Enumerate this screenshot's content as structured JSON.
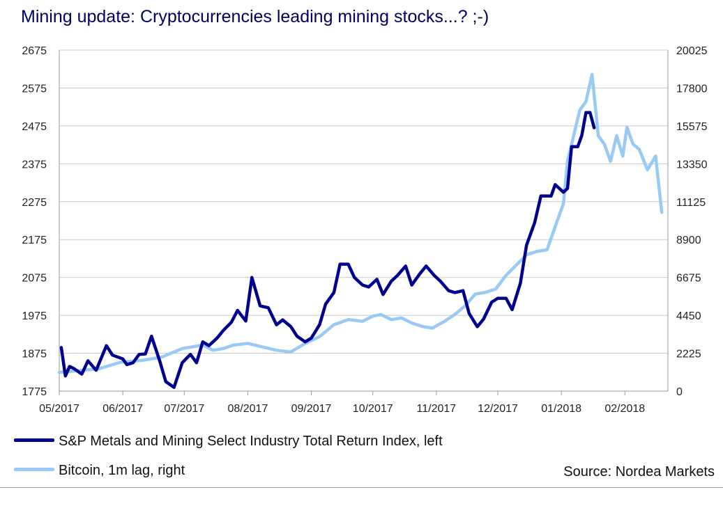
{
  "chart_data": {
    "type": "line",
    "title": "Mining update: Cryptocurrencies leading mining stocks...? ;-)",
    "source": "Source: Nordea Markets",
    "grid": "horizontal",
    "legend_placement": "bottom-left",
    "colors": {
      "left_series": "#00008f",
      "right_series": "#99c9f5",
      "title": "#00005e"
    },
    "x_axis": {
      "range": [
        "2017-05-01",
        "2018-02-22"
      ],
      "tick_labels": [
        "05/2017",
        "06/2017",
        "07/2017",
        "08/2017",
        "09/2017",
        "10/2017",
        "11/2017",
        "12/2017",
        "01/2018",
        "02/2018"
      ],
      "tick_dates": [
        "2017-05-01",
        "2017-06-01",
        "2017-07-01",
        "2017-08-01",
        "2017-09-01",
        "2017-10-01",
        "2017-11-01",
        "2017-12-01",
        "2018-01-01",
        "2018-02-01"
      ]
    },
    "y_left": {
      "range": [
        1775,
        2675
      ],
      "ticks": [
        1775,
        1875,
        1975,
        2075,
        2175,
        2275,
        2375,
        2475,
        2575,
        2675
      ],
      "tick_labels": [
        "1775",
        "1875",
        "1975",
        "2075",
        "2175",
        "2275",
        "2375",
        "2475",
        "2575",
        "2675"
      ]
    },
    "y_right": {
      "range": [
        0,
        20025
      ],
      "ticks": [
        0,
        2225,
        4450,
        6675,
        8900,
        11125,
        13350,
        15575,
        17800,
        20025
      ],
      "tick_labels": [
        "0",
        "2225",
        "4450",
        "6675",
        "8900",
        "11125",
        "13350",
        "15575",
        "17800",
        "20025"
      ]
    },
    "series": [
      {
        "name": "S&P Metals and Mining Select Industry Total Return Index, left",
        "axis": "left",
        "x": [
          "2017-05-02",
          "2017-05-04",
          "2017-05-06",
          "2017-05-08",
          "2017-05-12",
          "2017-05-15",
          "2017-05-19",
          "2017-05-24",
          "2017-05-27",
          "2017-06-01",
          "2017-06-03",
          "2017-06-06",
          "2017-06-09",
          "2017-06-12",
          "2017-06-15",
          "2017-06-19",
          "2017-06-22",
          "2017-06-26",
          "2017-06-30",
          "2017-07-04",
          "2017-07-07",
          "2017-07-10",
          "2017-07-13",
          "2017-07-17",
          "2017-07-20",
          "2017-07-24",
          "2017-07-27",
          "2017-07-31",
          "2017-08-03",
          "2017-08-07",
          "2017-08-11",
          "2017-08-15",
          "2017-08-18",
          "2017-08-22",
          "2017-08-25",
          "2017-08-29",
          "2017-09-01",
          "2017-09-05",
          "2017-09-08",
          "2017-09-12",
          "2017-09-15",
          "2017-09-19",
          "2017-09-22",
          "2017-09-26",
          "2017-09-29",
          "2017-10-03",
          "2017-10-06",
          "2017-10-10",
          "2017-10-13",
          "2017-10-17",
          "2017-10-20",
          "2017-10-24",
          "2017-10-27",
          "2017-10-31",
          "2017-11-03",
          "2017-11-07",
          "2017-11-10",
          "2017-11-14",
          "2017-11-17",
          "2017-11-21",
          "2017-11-24",
          "2017-11-28",
          "2017-12-01",
          "2017-12-05",
          "2017-12-08",
          "2017-12-12",
          "2017-12-15",
          "2017-12-19",
          "2017-12-22",
          "2017-12-27",
          "2017-12-29",
          "2018-01-02",
          "2018-01-04",
          "2018-01-06",
          "2018-01-09",
          "2018-01-11",
          "2018-01-13",
          "2018-01-15",
          "2018-01-17"
        ],
        "values": [
          1890,
          1815,
          1840,
          1835,
          1820,
          1855,
          1830,
          1895,
          1870,
          1860,
          1845,
          1850,
          1872,
          1873,
          1920,
          1855,
          1800,
          1785,
          1850,
          1872,
          1850,
          1905,
          1895,
          1915,
          1935,
          1957,
          1988,
          1960,
          2075,
          2000,
          1995,
          1950,
          1963,
          1945,
          1920,
          1905,
          1915,
          1950,
          2005,
          2035,
          2110,
          2110,
          2075,
          2055,
          2050,
          2070,
          2030,
          2065,
          2080,
          2105,
          2055,
          2085,
          2105,
          2080,
          2065,
          2040,
          2035,
          2040,
          1980,
          1945,
          1965,
          2010,
          2020,
          2020,
          1990,
          2060,
          2160,
          2220,
          2290,
          2290,
          2320,
          2300,
          2310,
          2420,
          2420,
          2450,
          2510,
          2510,
          2470
        ]
      },
      {
        "name": "Bitcoin, 1m lag, right",
        "axis": "right",
        "x": [
          "2017-05-01",
          "2017-05-10",
          "2017-05-20",
          "2017-05-31",
          "2017-06-10",
          "2017-06-20",
          "2017-06-30",
          "2017-07-05",
          "2017-07-10",
          "2017-07-15",
          "2017-07-20",
          "2017-07-25",
          "2017-08-01",
          "2017-08-08",
          "2017-08-15",
          "2017-08-22",
          "2017-08-29",
          "2017-09-05",
          "2017-09-12",
          "2017-09-19",
          "2017-09-26",
          "2017-10-01",
          "2017-10-05",
          "2017-10-10",
          "2017-10-15",
          "2017-10-20",
          "2017-10-25",
          "2017-10-30",
          "2017-11-05",
          "2017-11-10",
          "2017-11-15",
          "2017-11-20",
          "2017-11-25",
          "2017-11-30",
          "2017-12-05",
          "2017-12-10",
          "2017-12-15",
          "2017-12-20",
          "2017-12-25",
          "2017-12-30",
          "2018-01-02",
          "2018-01-04",
          "2018-01-07",
          "2018-01-10",
          "2018-01-13",
          "2018-01-16",
          "2018-01-19",
          "2018-01-22",
          "2018-01-25",
          "2018-01-28",
          "2018-01-31",
          "2018-02-02",
          "2018-02-05",
          "2018-02-08",
          "2018-02-12",
          "2018-02-16",
          "2018-02-19"
        ],
        "values": [
          1100,
          1200,
          1300,
          1700,
          1800,
          2000,
          2500,
          2600,
          2700,
          2400,
          2500,
          2700,
          2800,
          2600,
          2400,
          2300,
          2800,
          3200,
          3900,
          4200,
          4100,
          4400,
          4500,
          4200,
          4300,
          4000,
          3800,
          3700,
          4100,
          4500,
          5000,
          5700,
          5800,
          6000,
          6800,
          7400,
          8000,
          8200,
          8300,
          10000,
          11000,
          13500,
          15000,
          16500,
          17000,
          18600,
          15000,
          14500,
          13500,
          15000,
          13800,
          15500,
          14500,
          14200,
          13000,
          13800,
          10500
        ]
      }
    ]
  }
}
